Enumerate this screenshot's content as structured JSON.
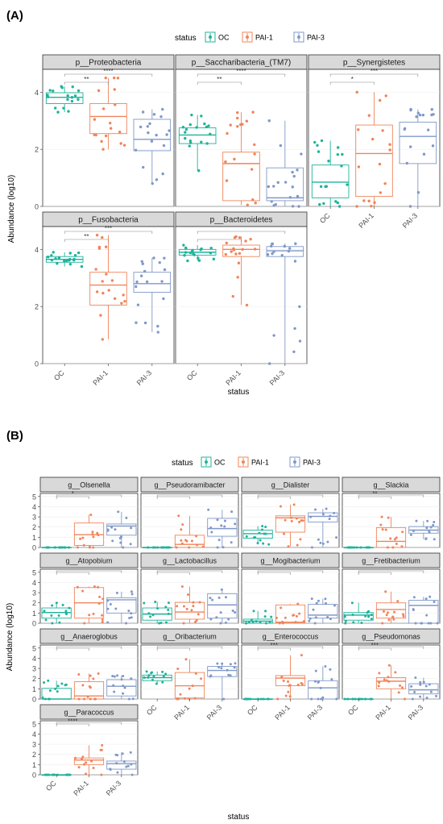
{
  "colors": {
    "OC": "#1fb39a",
    "PAI-1": "#f0845a",
    "PAI-3": "#8098c8",
    "strip": "#d9d9d9",
    "panel_border": "#333333",
    "axis_text": "#4d4d4d",
    "gridline": "#ebebeb"
  },
  "panel_a": {
    "tag": "(A)",
    "legend_title": "status",
    "groups": [
      "OC",
      "PAI-1",
      "PAI-3"
    ],
    "xlabel": "status",
    "ylabel": "Abundance (log10)"
  },
  "panel_b": {
    "tag": "(B)",
    "legend_title": "status",
    "groups": [
      "OC",
      "PAI-1",
      "PAI-3"
    ],
    "xlabel": "status",
    "ylabel": "Abundance (log10)"
  },
  "chart_data": [
    {
      "type": "box",
      "y_ticks": [
        0,
        2,
        4
      ],
      "ylim": [
        0,
        4.8
      ],
      "categories": [
        "OC",
        "PAI-1",
        "PAI-3"
      ],
      "facets": [
        {
          "title": "p__Proteobacteria",
          "box": [
            [
              3.6,
              3.82,
              3.98
            ],
            [
              2.55,
              3.15,
              3.6
            ],
            [
              1.95,
              2.35,
              3.05
            ]
          ],
          "whisker": [
            [
              3.3,
              4.2
            ],
            [
              2.0,
              4.5
            ],
            [
              0.8,
              3.4
            ]
          ],
          "sig": [
            "**",
            "****"
          ]
        },
        {
          "title": "p__Saccharibacteria_(TM7)",
          "box": [
            [
              2.2,
              2.5,
              2.75
            ],
            [
              0.2,
              1.5,
              1.9
            ],
            [
              0.2,
              0.3,
              1.35
            ]
          ],
          "whisker": [
            [
              1.25,
              3.2
            ],
            [
              0.05,
              3.3
            ],
            [
              0.0,
              3.0
            ]
          ],
          "sig": [
            "**",
            "****"
          ]
        },
        {
          "title": "p__Synergistetes",
          "box": [
            [
              0.3,
              0.85,
              1.45
            ],
            [
              0.35,
              1.85,
              2.85
            ],
            [
              1.5,
              2.45,
              2.95
            ]
          ],
          "whisker": [
            [
              0.0,
              2.3
            ],
            [
              0.0,
              4.0
            ],
            [
              0.0,
              3.4
            ]
          ],
          "sig": [
            "*",
            "***"
          ]
        },
        {
          "title": "p__Fusobacteria",
          "box": [
            [
              3.55,
              3.65,
              3.75
            ],
            [
              2.05,
              2.75,
              3.2
            ],
            [
              2.5,
              2.8,
              3.2
            ]
          ],
          "whisker": [
            [
              3.4,
              3.9
            ],
            [
              0.85,
              4.5
            ],
            [
              1.1,
              3.7
            ]
          ],
          "sig": [
            "**",
            "***"
          ]
        },
        {
          "title": "p__Bacteroidetes",
          "box": [
            [
              3.8,
              3.9,
              4.0
            ],
            [
              3.75,
              4.0,
              4.15
            ],
            [
              3.75,
              3.95,
              4.1
            ]
          ],
          "whisker": [
            [
              3.6,
              4.15
            ],
            [
              2.05,
              4.45
            ],
            [
              0.0,
              4.2
            ]
          ],
          "sig": [
            "",
            ""
          ]
        }
      ]
    },
    {
      "type": "box",
      "y_ticks": [
        0,
        1,
        2,
        3,
        4,
        5
      ],
      "ylim": [
        0,
        5.3
      ],
      "categories": [
        "OC",
        "PAI-1",
        "PAI-3"
      ],
      "facets": [
        {
          "title": "g__Olsenella",
          "box": [
            [
              0,
              0,
              0
            ],
            [
              0.2,
              1.25,
              2.4
            ],
            [
              1.2,
              2.1,
              2.3
            ]
          ],
          "whisker": [
            [
              0,
              0
            ],
            [
              0,
              3.2
            ],
            [
              0,
              3.5
            ]
          ],
          "sig": [
            "*",
            ""
          ]
        },
        {
          "title": "g__Pseudoramibacter",
          "box": [
            [
              0,
              0,
              0
            ],
            [
              0,
              0.3,
              1.2
            ],
            [
              1.1,
              1.85,
              2.85
            ]
          ],
          "whisker": [
            [
              0,
              0
            ],
            [
              0,
              3.1
            ],
            [
              0,
              3.7
            ]
          ],
          "sig": [
            "",
            ""
          ]
        },
        {
          "title": "g__Dialister",
          "box": [
            [
              0.9,
              1.35,
              1.7
            ],
            [
              1.5,
              2.9,
              3.1
            ],
            [
              2.5,
              3.05,
              3.4
            ]
          ],
          "whisker": [
            [
              0.3,
              2.1
            ],
            [
              0.1,
              4.2
            ],
            [
              0,
              3.8
            ]
          ],
          "sig": [
            "",
            ""
          ]
        },
        {
          "title": "g__Slackia",
          "box": [
            [
              0,
              0,
              0
            ],
            [
              0,
              0.6,
              1.95
            ],
            [
              1.4,
              1.7,
              2.05
            ]
          ],
          "whisker": [
            [
              0,
              0
            ],
            [
              0,
              3.0
            ],
            [
              0.8,
              2.6
            ]
          ],
          "sig": [
            "**",
            ""
          ]
        },
        {
          "title": "g__Atopobium",
          "box": [
            [
              0.5,
              1.05,
              1.5
            ],
            [
              0.5,
              2.0,
              3.5
            ],
            [
              1.0,
              2.3,
              2.5
            ]
          ],
          "whisker": [
            [
              0,
              2.0
            ],
            [
              0,
              3.6
            ],
            [
              0,
              3.1
            ]
          ],
          "sig": [
            "",
            ""
          ]
        },
        {
          "title": "g__Lactobacillus",
          "box": [
            [
              0.3,
              0.9,
              1.5
            ],
            [
              0.4,
              1.1,
              2.05
            ],
            [
              0.5,
              1.8,
              2.9
            ]
          ],
          "whisker": [
            [
              0,
              2.1
            ],
            [
              0,
              3.6
            ],
            [
              0,
              3.3
            ]
          ],
          "sig": [
            "",
            ""
          ]
        },
        {
          "title": "g__Mogibacterium",
          "box": [
            [
              0,
              0.2,
              0.4
            ],
            [
              0,
              0.1,
              1.8
            ],
            [
              0.5,
              0.8,
              1.85
            ]
          ],
          "whisker": [
            [
              0,
              1.2
            ],
            [
              0,
              1.9
            ],
            [
              0,
              2.4
            ]
          ],
          "sig": [
            "",
            ""
          ]
        },
        {
          "title": "g__Fretibacterium",
          "box": [
            [
              0.3,
              0.8,
              1.05
            ],
            [
              0.5,
              1.35,
              2.0
            ],
            [
              0,
              1.75,
              2.25
            ]
          ],
          "whisker": [
            [
              0,
              2.0
            ],
            [
              0,
              3.1
            ],
            [
              0,
              2.6
            ]
          ],
          "sig": [
            "",
            ""
          ]
        },
        {
          "title": "g__Anaeroglobus",
          "box": [
            [
              0,
              0,
              1.05
            ],
            [
              0,
              0.3,
              1.7
            ],
            [
              0.3,
              1.25,
              1.9
            ]
          ],
          "whisker": [
            [
              0,
              1.8
            ],
            [
              0,
              2.5
            ],
            [
              0,
              2.3
            ]
          ],
          "sig": [
            "",
            ""
          ]
        },
        {
          "title": "g__Oribacterium",
          "box": [
            [
              1.8,
              2.1,
              2.35
            ],
            [
              0.1,
              1.3,
              2.6
            ],
            [
              2.2,
              2.8,
              3.2
            ]
          ],
          "whisker": [
            [
              1.5,
              2.7
            ],
            [
              0,
              3.9
            ],
            [
              0,
              3.5
            ]
          ],
          "sig": [
            "",
            ""
          ]
        },
        {
          "title": "g__Enterococcus",
          "box": [
            [
              0,
              0,
              0
            ],
            [
              1.3,
              2.05,
              2.3
            ],
            [
              0,
              1.1,
              1.8
            ]
          ],
          "whisker": [
            [
              0,
              0
            ],
            [
              0,
              4.3
            ],
            [
              0,
              3.2
            ]
          ],
          "sig": [
            "***",
            ""
          ]
        },
        {
          "title": "g__Pseudomonas",
          "box": [
            [
              0,
              0,
              0
            ],
            [
              1.0,
              1.75,
              2.1
            ],
            [
              0.5,
              0.9,
              1.5
            ]
          ],
          "whisker": [
            [
              0,
              0
            ],
            [
              0,
              3.3
            ],
            [
              0,
              2.1
            ]
          ],
          "sig": [
            "***",
            ""
          ]
        },
        {
          "title": "g__Paracoccus",
          "box": [
            [
              0,
              0,
              0
            ],
            [
              1.0,
              1.45,
              1.65
            ],
            [
              0.55,
              1.1,
              1.35
            ]
          ],
          "whisker": [
            [
              0,
              0
            ],
            [
              0,
              2.9
            ],
            [
              0,
              2.2
            ]
          ],
          "sig": [
            "****",
            ""
          ]
        }
      ]
    }
  ]
}
